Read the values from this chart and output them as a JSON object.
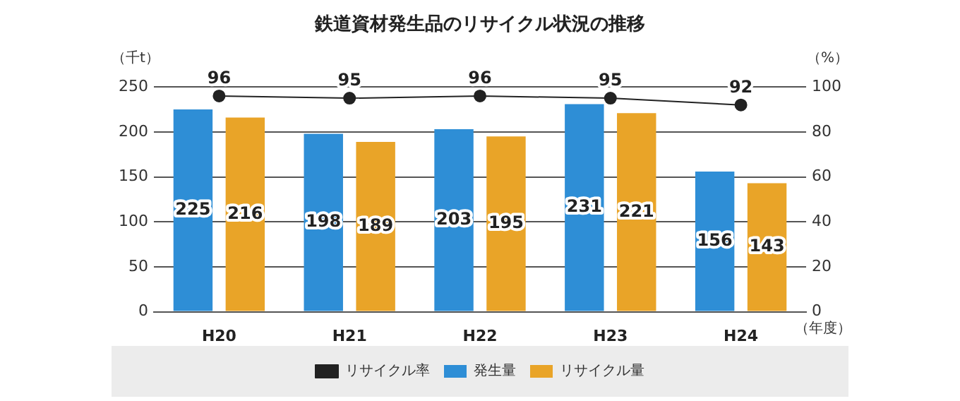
{
  "chart_data": {
    "type": "bar",
    "title": "鉄道資材発生品のリサイクル状況の推移",
    "xlabel": "（年度）",
    "ylabel": "（千t）",
    "y2label": "（%）",
    "categories": [
      "H20",
      "H21",
      "H22",
      "H23",
      "H24"
    ],
    "series": [
      {
        "name": "発生量",
        "color": "#2e8ed6",
        "values": [
          225,
          198,
          203,
          231,
          156
        ]
      },
      {
        "name": "リサイクル量",
        "color": "#e9a428",
        "values": [
          216,
          189,
          195,
          221,
          143
        ]
      },
      {
        "name": "リサイクル率",
        "type": "line",
        "axis": "y2",
        "color": "#222222",
        "values": [
          96,
          95,
          96,
          95,
          92
        ]
      }
    ],
    "ylim": [
      0,
      250
    ],
    "yticks": [
      0,
      50,
      100,
      150,
      200,
      250
    ],
    "y2lim": [
      0,
      100
    ],
    "y2ticks": [
      0,
      20,
      40,
      60,
      80,
      100
    ],
    "grid": "y",
    "legend": "bottom",
    "marker": "circle",
    "data_labels": true
  }
}
